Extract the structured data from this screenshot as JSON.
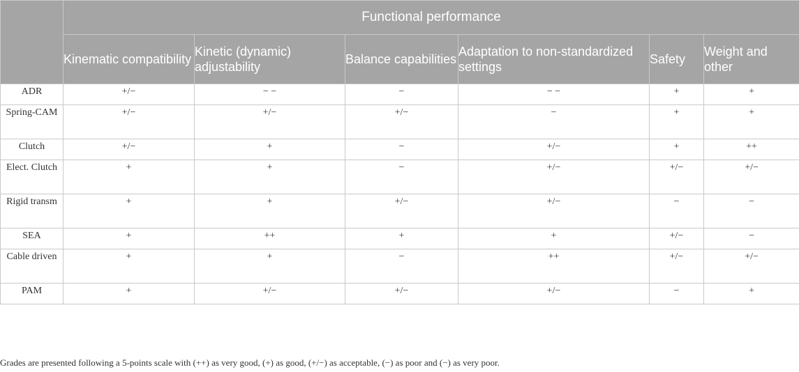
{
  "table": {
    "group_header": "Functional performance",
    "columns": [
      "Kinematic compatibility",
      "Kinetic (dynamic) adjustability",
      "Balance capabilities",
      "Adaptation to non-standardized settings",
      "Safety",
      "Weight and other"
    ],
    "rows": [
      {
        "label": "ADR",
        "cells": [
          "+/−",
          "− −",
          "−",
          "− −",
          "+",
          "+"
        ]
      },
      {
        "label": "Spring-CAM",
        "cells": [
          "+/−",
          "+/−",
          "+/−",
          "−",
          "+",
          "+"
        ]
      },
      {
        "label": "Clutch",
        "cells": [
          "+/−",
          "+",
          "−",
          "+/−",
          "+",
          "++"
        ]
      },
      {
        "label": "Elect. Clutch",
        "cells": [
          "+",
          "+",
          "−",
          "+/−",
          "+/−",
          "+/−"
        ]
      },
      {
        "label": "Rigid transm",
        "cells": [
          "+",
          "+",
          "+/−",
          "+/−",
          "−",
          "−"
        ]
      },
      {
        "label": "SEA",
        "cells": [
          "+",
          "++",
          "+",
          "+",
          "+/−",
          "−"
        ]
      },
      {
        "label": "Cable driven",
        "cells": [
          "+",
          "+",
          "−",
          "++",
          "+/−",
          "+/−"
        ]
      },
      {
        "label": "PAM",
        "cells": [
          "+",
          "+/−",
          "+/−",
          "+/−",
          "−",
          "+"
        ]
      }
    ]
  },
  "footnote": "Grades are presented following a 5-points scale with (++) as very good, (+) as good, (+/−) as acceptable, (−) as poor and (−) as very poor."
}
